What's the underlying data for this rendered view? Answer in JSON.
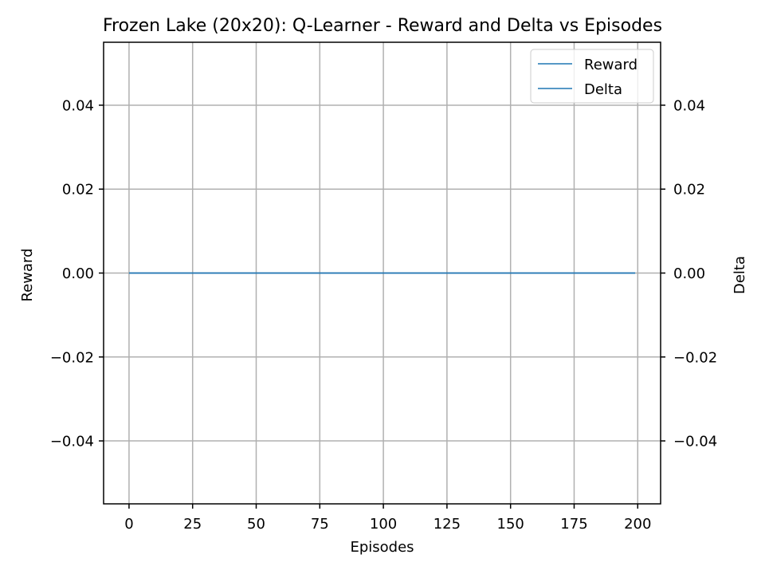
{
  "chart_data": {
    "type": "line",
    "title": "Frozen Lake (20x20): Q-Learner - Reward and Delta vs Episodes",
    "xlabel": "Episodes",
    "ylabel": "Reward",
    "y2label": "Delta",
    "xlim": [
      -10,
      209
    ],
    "ylim": [
      -0.055,
      0.055
    ],
    "y2lim": [
      -0.055,
      0.055
    ],
    "x_ticks": [
      0,
      25,
      50,
      75,
      100,
      125,
      150,
      175,
      200
    ],
    "x_tick_labels": [
      "0",
      "25",
      "50",
      "75",
      "100",
      "125",
      "150",
      "175",
      "200"
    ],
    "y_ticks": [
      -0.04,
      -0.02,
      0.0,
      0.02,
      0.04
    ],
    "y_tick_labels": [
      "−0.04",
      "−0.02",
      "0.00",
      "0.02",
      "0.04"
    ],
    "y2_ticks": [
      -0.04,
      -0.02,
      0.0,
      0.02,
      0.04
    ],
    "y2_tick_labels": [
      "−0.04",
      "−0.02",
      "0.00",
      "0.02",
      "0.04"
    ],
    "grid": true,
    "legend_position": "top-right",
    "series": [
      {
        "name": "Reward",
        "axis": "left",
        "color": "#1f77b4",
        "x": [
          0,
          199
        ],
        "values": [
          0,
          0
        ]
      },
      {
        "name": "Delta",
        "axis": "right",
        "color": "#1f77b4",
        "x": [
          0,
          199
        ],
        "values": [
          0,
          0
        ]
      }
    ]
  }
}
